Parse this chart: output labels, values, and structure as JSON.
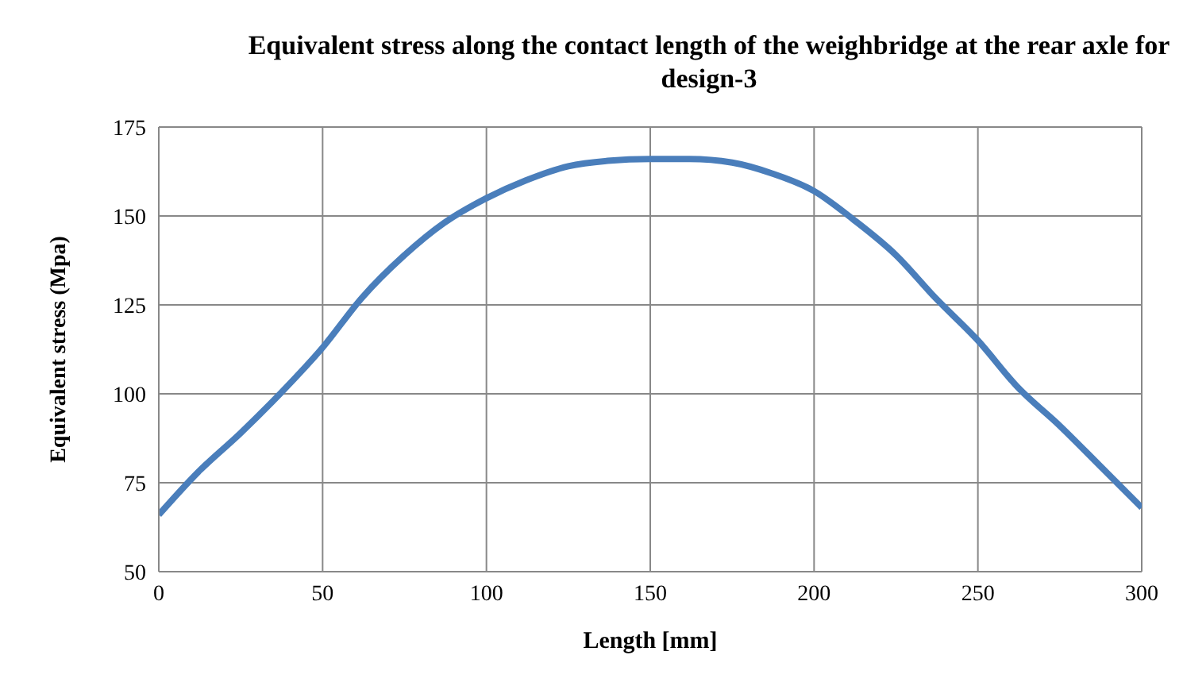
{
  "chart_data": {
    "type": "line",
    "title": "Equivalent stress along the contact length of the weighbridge at the rear axle for design-3",
    "xlabel": "Length [mm]",
    "ylabel": "Equivalent stress  (Mpa)",
    "x": [
      0,
      12,
      25,
      37,
      50,
      62,
      75,
      87,
      100,
      112,
      125,
      137,
      150,
      162,
      175,
      187,
      200,
      212,
      225,
      237,
      250,
      262,
      275,
      287,
      300
    ],
    "series": [
      {
        "color": "#4a7ebb",
        "values": [
          66,
          78,
          89,
          100,
          113,
          127,
          139,
          148,
          155,
          160,
          164,
          165.5,
          166,
          166,
          165,
          162,
          157,
          149,
          139,
          127,
          115,
          102,
          91,
          80,
          68
        ]
      }
    ],
    "xlim": [
      0,
      300
    ],
    "xticks": [
      0,
      50,
      100,
      150,
      200,
      250,
      300
    ],
    "ylim": [
      50,
      175
    ],
    "yticks": [
      50,
      75,
      100,
      125,
      150,
      175
    ],
    "grid": true,
    "legend": false,
    "marker": "none",
    "line_style": "solid"
  }
}
